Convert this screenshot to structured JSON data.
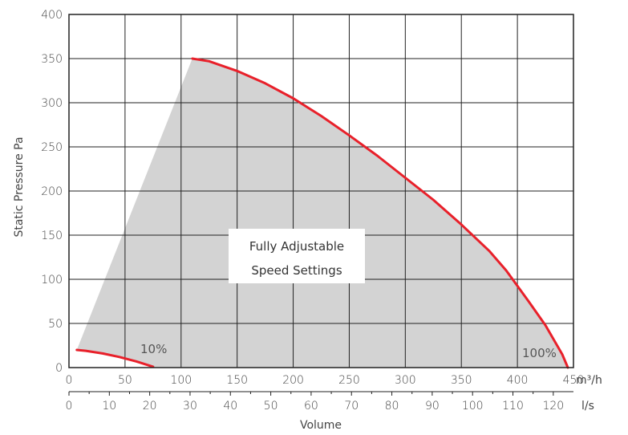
{
  "chart_data": {
    "type": "area",
    "ylabel": "Static Pressure Pa",
    "xlabel": "Volume",
    "x_unit_primary": "m³/h",
    "x_unit_secondary": "l/s",
    "ylim": [
      0,
      400
    ],
    "y_ticks": [
      0,
      50,
      100,
      150,
      200,
      250,
      300,
      350,
      400
    ],
    "xlim": [
      0,
      450
    ],
    "x_ticks_m3h": [
      0,
      50,
      100,
      150,
      200,
      250,
      300,
      350,
      400,
      450
    ],
    "x_ticks_ls": [
      0,
      10,
      20,
      30,
      40,
      50,
      60,
      70,
      80,
      90,
      100,
      110,
      120
    ],
    "grid": true,
    "series": [
      {
        "name": "100%",
        "color": "#e8202a",
        "x": [
          110,
          125,
          150,
          175,
          200,
          225,
          250,
          275,
          300,
          325,
          350,
          375,
          390,
          410,
          425,
          440,
          445
        ],
        "y": [
          350,
          347,
          336,
          322,
          305,
          285,
          263,
          240,
          215,
          190,
          162,
          132,
          110,
          75,
          48,
          15,
          0
        ]
      },
      {
        "name": "10%",
        "color": "#e8202a",
        "x": [
          7,
          15,
          30,
          45,
          60,
          75
        ],
        "y": [
          20,
          19,
          16,
          12,
          7,
          1
        ]
      }
    ],
    "operating_area": {
      "color": "#d3d3d3",
      "text_line1": "Fully Adjustable",
      "text_line2": "Speed Settings"
    }
  }
}
